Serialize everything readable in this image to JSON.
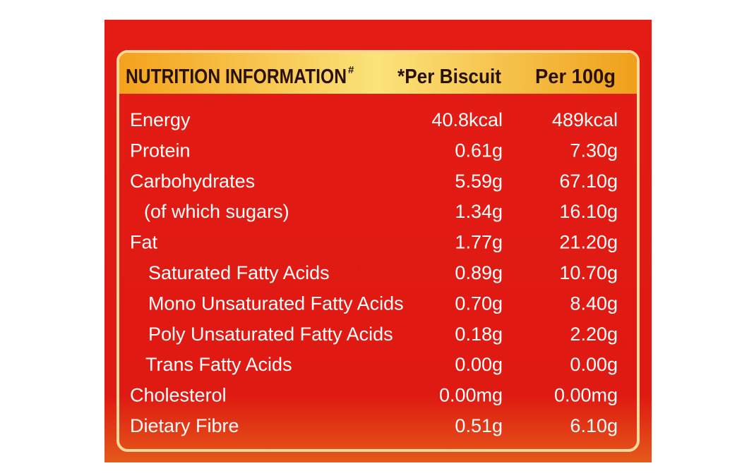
{
  "header": {
    "title": "NUTRITION INFORMATION",
    "title_mark": "#",
    "columns": [
      "*Per Biscuit",
      "Per 100g"
    ]
  },
  "table": {
    "rows": [
      [
        "Energy",
        "40.8kcal",
        "489kcal"
      ],
      [
        "Protein",
        "0.61g",
        "7.30g"
      ],
      [
        "Carbohydrates",
        "5.59g",
        "67.10g"
      ],
      [
        "(of which sugars)",
        "1.34g",
        "16.10g"
      ],
      [
        "Fat",
        "1.77g",
        "21.20g"
      ],
      [
        "Saturated Fatty Acids",
        "0.89g",
        "10.70g"
      ],
      [
        "Mono Unsaturated Fatty Acids",
        "0.70g",
        "8.40g"
      ],
      [
        "Poly Unsaturated Fatty Acids",
        "0.18g",
        "2.20g"
      ],
      [
        "Trans Fatty Acids",
        "0.00g",
        "0.00g"
      ],
      [
        "Cholesterol",
        "0.00mg",
        "0.00mg"
      ],
      [
        "Dietary Fibre",
        "0.51g",
        "6.10g"
      ]
    ]
  }
}
